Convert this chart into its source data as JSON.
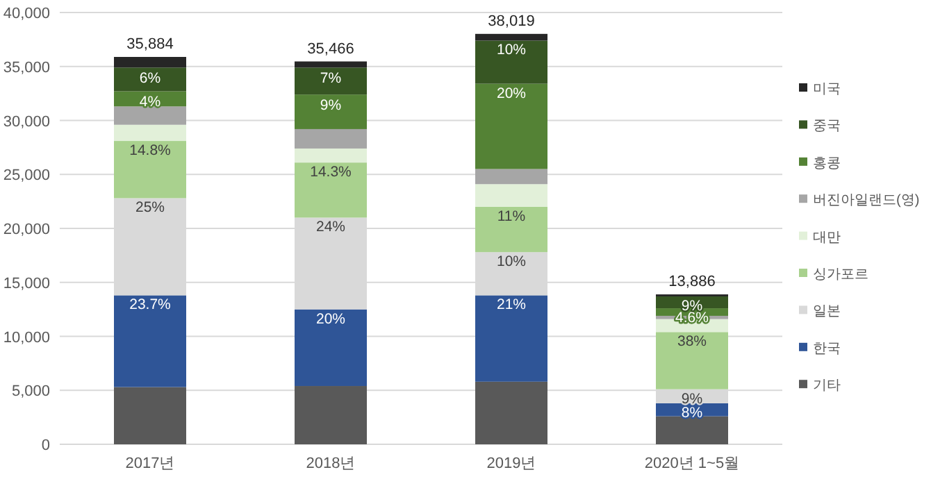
{
  "chart_data": {
    "type": "bar",
    "stacked": true,
    "categories": [
      "2017년",
      "2018년",
      "2019년",
      "2020년 1~5월"
    ],
    "ylim": [
      0,
      40000
    ],
    "yticks": [
      {
        "value": 0,
        "label": "0"
      },
      {
        "value": 5000,
        "label": "5,000"
      },
      {
        "value": 10000,
        "label": "10,000"
      },
      {
        "value": 15000,
        "label": "15,000"
      },
      {
        "value": 20000,
        "label": "20,000"
      },
      {
        "value": 25000,
        "label": "25,000"
      },
      {
        "value": 30000,
        "label": "30,000"
      },
      {
        "value": 35000,
        "label": "35,000"
      },
      {
        "value": 40000,
        "label": "40,000"
      }
    ],
    "grid": "y",
    "legend": "right",
    "series": [
      {
        "name": "기타",
        "color": "#595959",
        "values": [
          5300,
          5400,
          5800,
          2600
        ]
      },
      {
        "name": "한국",
        "color": "#2f5597",
        "values": [
          8500,
          7100,
          8000,
          1200
        ]
      },
      {
        "name": "일본",
        "color": "#d9d9d9",
        "values": [
          9000,
          8500,
          4000,
          1300
        ]
      },
      {
        "name": "싱가포르",
        "color": "#a9d18e",
        "values": [
          5300,
          5100,
          4200,
          5300
        ]
      },
      {
        "name": "대만",
        "color": "#e2f0d9",
        "values": [
          1500,
          1300,
          2100,
          1200
        ]
      },
      {
        "name": "버진아일랜드(영)",
        "color": "#a6a6a6",
        "values": [
          1700,
          1800,
          1400,
          300
        ]
      },
      {
        "name": "홍콩",
        "color": "#548235",
        "values": [
          1400,
          3200,
          7900,
          700
        ]
      },
      {
        "name": "중국",
        "color": "#375623",
        "values": [
          2200,
          2500,
          4000,
          1100
        ]
      },
      {
        "name": "미국",
        "color": "#262626",
        "values": [
          984,
          566,
          619,
          186
        ]
      }
    ],
    "totals": [
      "35,884",
      "35,466",
      "38,019",
      "13,886"
    ],
    "annotations": [
      {
        "text": "23.7%",
        "x": "2017년",
        "y": 13800
      },
      {
        "text": "25%",
        "x": "2017년",
        "y": 22800
      },
      {
        "text": "14.8%",
        "x": "2017년",
        "y": 28100
      },
      {
        "text": "4%",
        "x": "2017년",
        "y": 32600
      },
      {
        "text": "6%",
        "x": "2017년",
        "y": 34800
      },
      {
        "text": "20%",
        "x": "2018년",
        "y": 12500
      },
      {
        "text": "24%",
        "x": "2018년",
        "y": 21000
      },
      {
        "text": "14.3%",
        "x": "2018년",
        "y": 26100
      },
      {
        "text": "9%",
        "x": "2018년",
        "y": 32300
      },
      {
        "text": "7%",
        "x": "2018년",
        "y": 34800
      },
      {
        "text": "21%",
        "x": "2019년",
        "y": 13800
      },
      {
        "text": "10%",
        "x": "2019년",
        "y": 17800
      },
      {
        "text": "11%",
        "x": "2019년",
        "y": 22000
      },
      {
        "text": "20%",
        "x": "2019년",
        "y": 33400
      },
      {
        "text": "10%",
        "x": "2019년",
        "y": 37400
      },
      {
        "text": "8%",
        "x": "2020년 1~5월",
        "y": 3800
      },
      {
        "text": "9%",
        "x": "2020년 1~5월",
        "y": 5100
      },
      {
        "text": "38%",
        "x": "2020년 1~5월",
        "y": 10400
      },
      {
        "text": "4.6%",
        "x": "2020년 1~5월",
        "y": 12600
      },
      {
        "text": "9%",
        "x": "2020년 1~5월",
        "y": 13700
      }
    ]
  }
}
